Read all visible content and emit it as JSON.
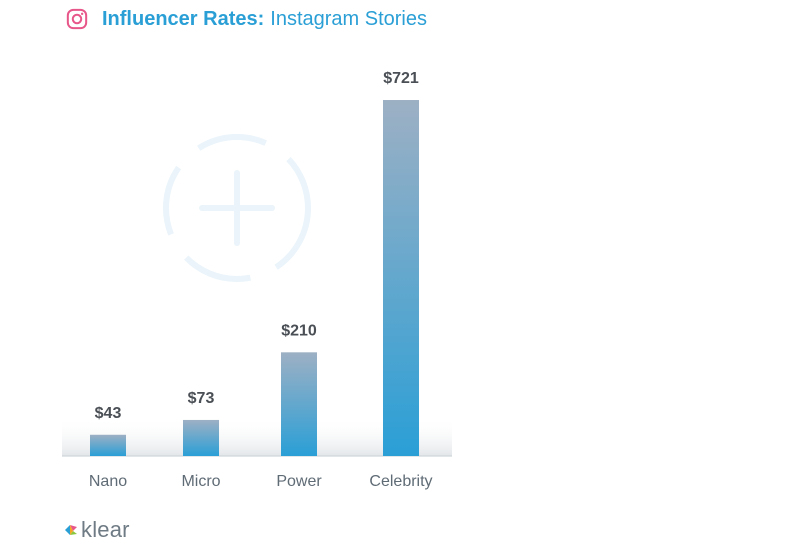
{
  "header": {
    "title_bold": "Influencer Rates:",
    "title_sub": "Instagram Stories",
    "icon": "instagram-icon",
    "accent_color": "#2a9fd6",
    "icon_color": "#e8578a"
  },
  "chart_data": {
    "type": "bar",
    "title": "Influencer Rates: Instagram Stories",
    "categories": [
      "Nano",
      "Micro",
      "Power",
      "Celebrity"
    ],
    "values": [
      43,
      73,
      210,
      721
    ],
    "value_labels": [
      "$43",
      "$73",
      "$210",
      "$721"
    ],
    "xlabel": "",
    "ylabel": "",
    "ylim": [
      0,
      721
    ],
    "grid": false,
    "legend": "none",
    "bar_gradient": [
      "#9db0c4",
      "#2a9fd6"
    ]
  },
  "footer": {
    "brand": "klear",
    "icon": "klear-logo-icon"
  }
}
